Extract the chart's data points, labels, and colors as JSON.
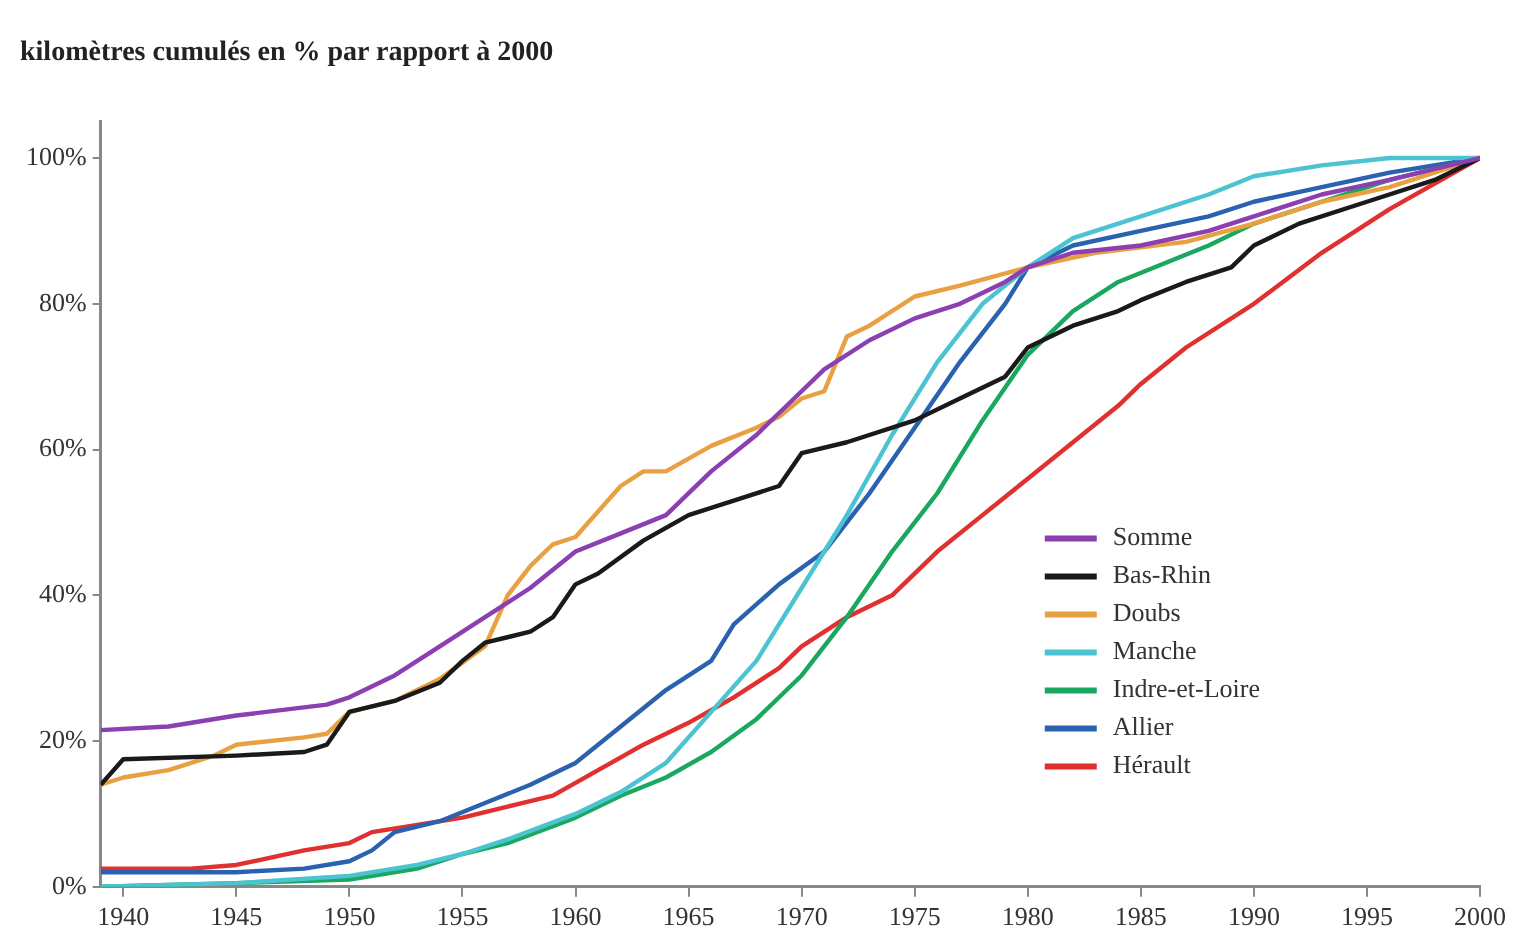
{
  "chart_data": {
    "type": "line",
    "title": "kilomètres cumulés en % par rapport à 2000",
    "xlim": [
      1939,
      2000
    ],
    "ylim": [
      0,
      105
    ],
    "xticks": [
      1940,
      1945,
      1950,
      1955,
      1960,
      1965,
      1970,
      1975,
      1980,
      1985,
      1990,
      1995,
      2000
    ],
    "yticks": [
      {
        "value": 0,
        "label": "0%"
      },
      {
        "value": 20,
        "label": "20%"
      },
      {
        "value": 40,
        "label": "40%"
      },
      {
        "value": 60,
        "label": "60%"
      },
      {
        "value": 80,
        "label": "80%"
      },
      {
        "value": 100,
        "label": "100%"
      }
    ],
    "grid": false,
    "legend": "center right",
    "marker": "none",
    "line_style": "solid",
    "series": [
      {
        "name": "Somme",
        "color": "#8b3fb0",
        "x": [
          1939,
          1942,
          1945,
          1949,
          1950,
          1952,
          1954,
          1956,
          1958,
          1960,
          1962,
          1964,
          1966,
          1968,
          1970,
          1971,
          1973,
          1975,
          1977,
          1979,
          1980,
          1982,
          1985,
          1988,
          1990,
          1993,
          1996,
          2000
        ],
        "values": [
          21.5,
          22,
          23.5,
          25,
          26,
          29,
          33,
          37,
          41,
          46,
          48.5,
          51,
          57,
          62,
          68,
          71,
          75,
          78,
          80,
          83,
          85,
          87,
          88,
          90,
          92,
          95,
          97,
          100
        ]
      },
      {
        "name": "Bas-Rhin",
        "color": "#1a1a1a",
        "x": [
          1939,
          1940,
          1945,
          1948,
          1949,
          1950,
          1952,
          1954,
          1955,
          1956,
          1958,
          1959,
          1960,
          1961,
          1963,
          1965,
          1967,
          1969,
          1970,
          1972,
          1975,
          1977,
          1979,
          1980,
          1982,
          1984,
          1985,
          1987,
          1989,
          1990,
          1992,
          1995,
          1998,
          2000
        ],
        "values": [
          14,
          17.5,
          18,
          18.5,
          19.5,
          24,
          25.5,
          28,
          31,
          33.5,
          35,
          37,
          41.5,
          43,
          47.5,
          51,
          53,
          55,
          59.5,
          61,
          64,
          67,
          70,
          74,
          77,
          79,
          80.5,
          83,
          85,
          88,
          91,
          94,
          97,
          100
        ]
      },
      {
        "name": "Doubs",
        "color": "#e8a040",
        "x": [
          1939,
          1940,
          1942,
          1944,
          1945,
          1948,
          1949,
          1950,
          1952,
          1954,
          1956,
          1957,
          1958,
          1959,
          1960,
          1962,
          1963,
          1964,
          1966,
          1968,
          1969,
          1970,
          1971,
          1972,
          1973,
          1975,
          1977,
          1980,
          1983,
          1987,
          1990,
          1993,
          1996,
          2000
        ],
        "values": [
          14,
          15,
          16,
          18,
          19.5,
          20.5,
          21,
          24,
          25.5,
          28.5,
          33,
          40,
          44,
          47,
          48,
          55,
          57,
          57,
          60.5,
          63,
          64.5,
          67,
          68,
          75.5,
          77,
          81,
          82.5,
          85,
          87,
          88.5,
          91,
          94,
          96,
          100
        ]
      },
      {
        "name": "Manche",
        "color": "#4cc3d0",
        "x": [
          1939,
          1945,
          1950,
          1953,
          1955,
          1957,
          1960,
          1962,
          1964,
          1966,
          1968,
          1970,
          1972,
          1974,
          1976,
          1978,
          1980,
          1982,
          1985,
          1988,
          1990,
          1993,
          1996,
          2000
        ],
        "values": [
          0,
          0.5,
          1.5,
          3,
          4.5,
          6.5,
          10,
          13,
          17,
          24,
          31,
          41,
          51,
          62,
          72,
          80,
          85,
          89,
          92,
          95,
          97.5,
          99,
          100,
          100
        ]
      },
      {
        "name": "Indre-et-Loire",
        "color": "#1aa860",
        "x": [
          1939,
          1945,
          1950,
          1953,
          1955,
          1957,
          1960,
          1962,
          1964,
          1966,
          1968,
          1970,
          1972,
          1974,
          1976,
          1978,
          1980,
          1982,
          1984,
          1986,
          1988,
          1990,
          1993,
          1996,
          2000
        ],
        "values": [
          0,
          0.5,
          1,
          2.5,
          4.5,
          6,
          9.5,
          12.5,
          15,
          18.5,
          23,
          29,
          37,
          46,
          54,
          64,
          73,
          79,
          83,
          85.5,
          88,
          91,
          94,
          97,
          100
        ]
      },
      {
        "name": "Allier",
        "color": "#2a62b0",
        "x": [
          1939,
          1945,
          1948,
          1950,
          1951,
          1952,
          1954,
          1956,
          1958,
          1960,
          1962,
          1964,
          1966,
          1967,
          1969,
          1971,
          1973,
          1975,
          1977,
          1979,
          1980,
          1982,
          1985,
          1988,
          1990,
          1993,
          1996,
          2000
        ],
        "values": [
          2,
          2,
          2.5,
          3.5,
          5,
          7.5,
          9,
          11.5,
          14,
          17,
          22,
          27,
          31,
          36,
          41.5,
          46,
          54,
          63,
          72,
          80,
          85,
          88,
          90,
          92,
          94,
          96,
          98,
          100
        ]
      },
      {
        "name": "Hérault",
        "color": "#e03030",
        "x": [
          1939,
          1943,
          1945,
          1948,
          1950,
          1951,
          1953,
          1955,
          1957,
          1959,
          1961,
          1963,
          1965,
          1967,
          1969,
          1970,
          1972,
          1974,
          1976,
          1978,
          1980,
          1982,
          1984,
          1985,
          1987,
          1990,
          1993,
          1996,
          2000
        ],
        "values": [
          2.5,
          2.5,
          3,
          5,
          6,
          7.5,
          8.5,
          9.5,
          11,
          12.5,
          16,
          19.5,
          22.5,
          26,
          30,
          33,
          37,
          40,
          46,
          51,
          56,
          61,
          66,
          69,
          74,
          80,
          87,
          93,
          100
        ]
      }
    ]
  }
}
